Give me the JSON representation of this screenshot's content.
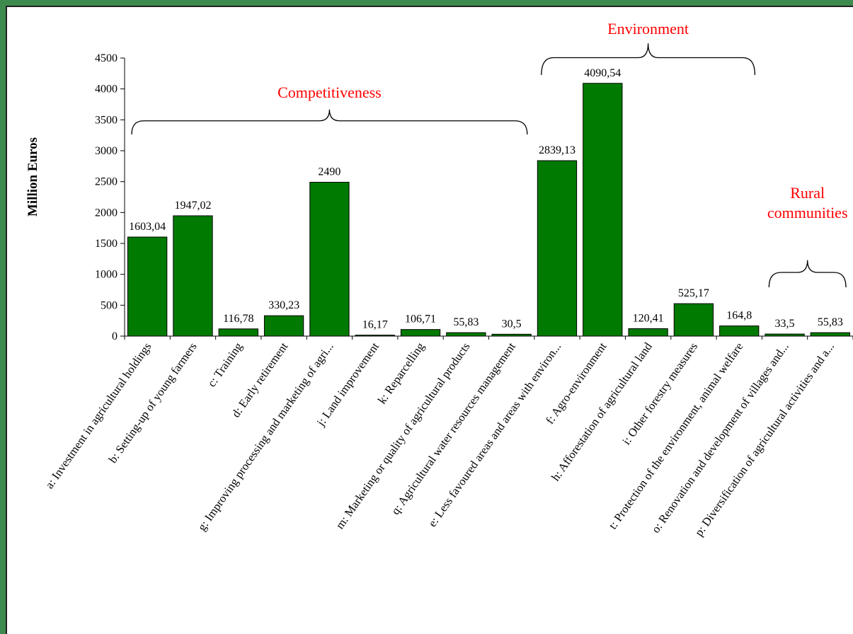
{
  "chart_data": {
    "type": "bar",
    "ylabel": "Million Euros",
    "ylim": [
      0,
      4500
    ],
    "yticks": [
      0,
      500,
      1000,
      1500,
      2000,
      2500,
      3000,
      3500,
      4000,
      4500
    ],
    "grid": false,
    "bar_color": "#007a00",
    "categories": [
      "a: Investment in agricultural holdings",
      "b: Setting-up of young farmers",
      "c: Training",
      "d: Early retirement",
      "g: Improving processing and marketing of agri...",
      "j: Land improvement",
      "k: Reparcelling",
      "m: Marketing or quality of agricultural products",
      "q: Agricultural water resources management",
      "e: Less favoured areas and areas with environ...",
      "f: Agro-environment",
      "h: Afforestation of agricultural land",
      "i: Other forestry measures",
      "t: Protection of the environment, animal welfare",
      "o: Renovation and development of villages and...",
      "p: Diversification of agricultural activities and a..."
    ],
    "values": [
      1603.04,
      1947.02,
      116.78,
      330.23,
      2490,
      16.17,
      106.71,
      55.83,
      30.5,
      2839.13,
      4090.54,
      120.41,
      525.17,
      164.8,
      33.5,
      55.83
    ],
    "data_labels": [
      "1603,04",
      "1947,02",
      "116,78",
      "330,23",
      "2490",
      "16,17",
      "106,71",
      "55,83",
      "30,5",
      "2839,13",
      "4090,54",
      "120,41",
      "525,17",
      "164,8",
      "33,5",
      "55,83"
    ],
    "annotations": [
      {
        "label": [
          "Competitiveness"
        ],
        "from_index": 0,
        "to_index": 8
      },
      {
        "label": [
          "Environment"
        ],
        "from_index": 9,
        "to_index": 13
      },
      {
        "label": [
          "Rural",
          "communities"
        ],
        "from_index": 14,
        "to_index": 15
      }
    ],
    "annotation_color": "#ff0000"
  }
}
